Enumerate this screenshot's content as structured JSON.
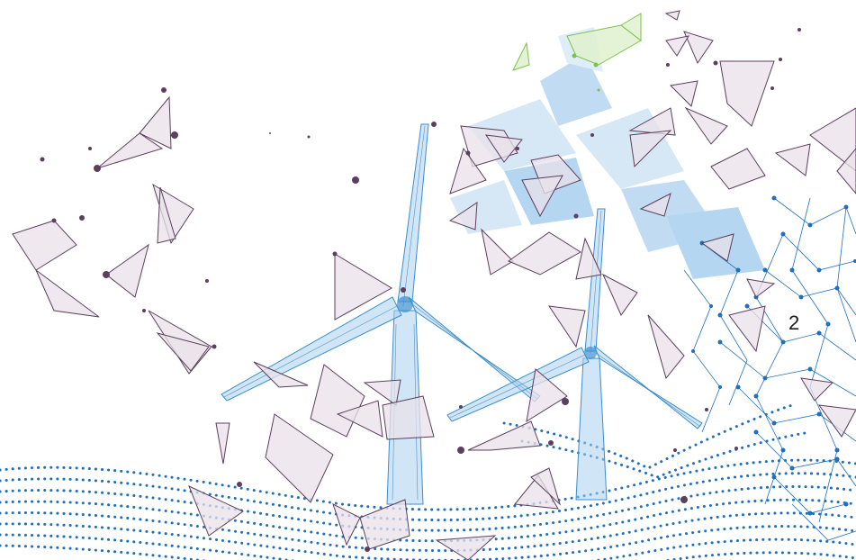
{
  "slide": {
    "page_number": "2"
  },
  "illustration": {
    "subject": "wind-turbines-low-poly-network",
    "colors": {
      "background": "#ffffff",
      "turbine_blue": "#3a8fd0",
      "dot_blue": "#1f6fbf",
      "light_blue": "#a9d0ee",
      "triangle_purple": "#5b3f5e",
      "triangle_fill": "#e9e2ea",
      "accent_green": "#7cc24a"
    }
  }
}
